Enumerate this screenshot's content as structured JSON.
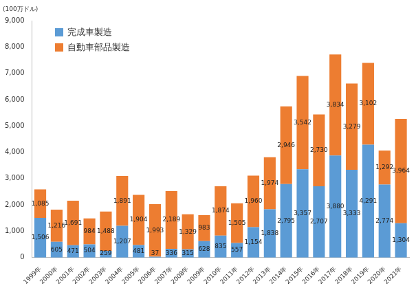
{
  "chart_data": {
    "type": "bar",
    "stacked": true,
    "data_labels": true,
    "grid": false,
    "legend": "top-left",
    "y_label": "(100万ドル)",
    "categories": [
      "1999年",
      "2000年",
      "2001年",
      "2002年",
      "2003年",
      "2004年",
      "2005年",
      "2006年",
      "2007年",
      "2008年",
      "2009年",
      "2010年",
      "2011年",
      "2012年",
      "2013年",
      "2014年",
      "2015年",
      "2016年",
      "2017年",
      "2018年",
      "2019年",
      "2020年",
      "2021年"
    ],
    "series": [
      {
        "name": "完成車製造",
        "color": "#5b9bd5",
        "values": [
          1506,
          605,
          471,
          504,
          259,
          1207,
          481,
          37,
          336,
          315,
          628,
          835,
          557,
          1154,
          1838,
          2795,
          3357,
          2707,
          3880,
          3333,
          4291,
          2774,
          1304
        ],
        "value_labels": [
          "1,506",
          "605",
          "471",
          "504",
          "259",
          "1,207",
          "481",
          "37",
          "336",
          "315",
          "628",
          "835",
          "557",
          "1,154",
          "1,838",
          "2,795",
          "3,357",
          "2,707",
          "3,880",
          "3,333",
          "4,291",
          "2,774",
          "1,304"
        ]
      },
      {
        "name": "自動車部品製造",
        "color": "#ed7d31",
        "values": [
          1085,
          1216,
          1691,
          984,
          1488,
          1891,
          1904,
          1993,
          2189,
          1329,
          983,
          1874,
          1505,
          1960,
          1974,
          2946,
          3542,
          2730,
          3834,
          3279,
          3102,
          1292,
          3964
        ],
        "value_labels": [
          "1,085",
          "1,216",
          "1,691",
          "984",
          "1,488",
          "1,891",
          "1,904",
          "1,993",
          "2,189",
          "1,329",
          "983",
          "1,874",
          "1,505",
          "1,960",
          "1,974",
          "2,946",
          "3,542",
          "2,730",
          "3,834",
          "3,279",
          "3,102",
          "1,292",
          "3,964"
        ]
      }
    ],
    "ylim": [
      0,
      9000
    ],
    "yticks": [
      0,
      {
        "value": 1000,
        "label": "1,000"
      },
      {
        "value": 2000,
        "label": "2,000"
      },
      {
        "value": 3000,
        "label": "3,000"
      },
      {
        "value": 4000,
        "label": "4,000"
      },
      {
        "value": 5000,
        "label": "5,000"
      },
      {
        "value": 6000,
        "label": "6,000"
      },
      {
        "value": 7000,
        "label": "7,000"
      },
      {
        "value": 8000,
        "label": "8,000"
      },
      {
        "value": 9000,
        "label": "9,000"
      }
    ]
  }
}
